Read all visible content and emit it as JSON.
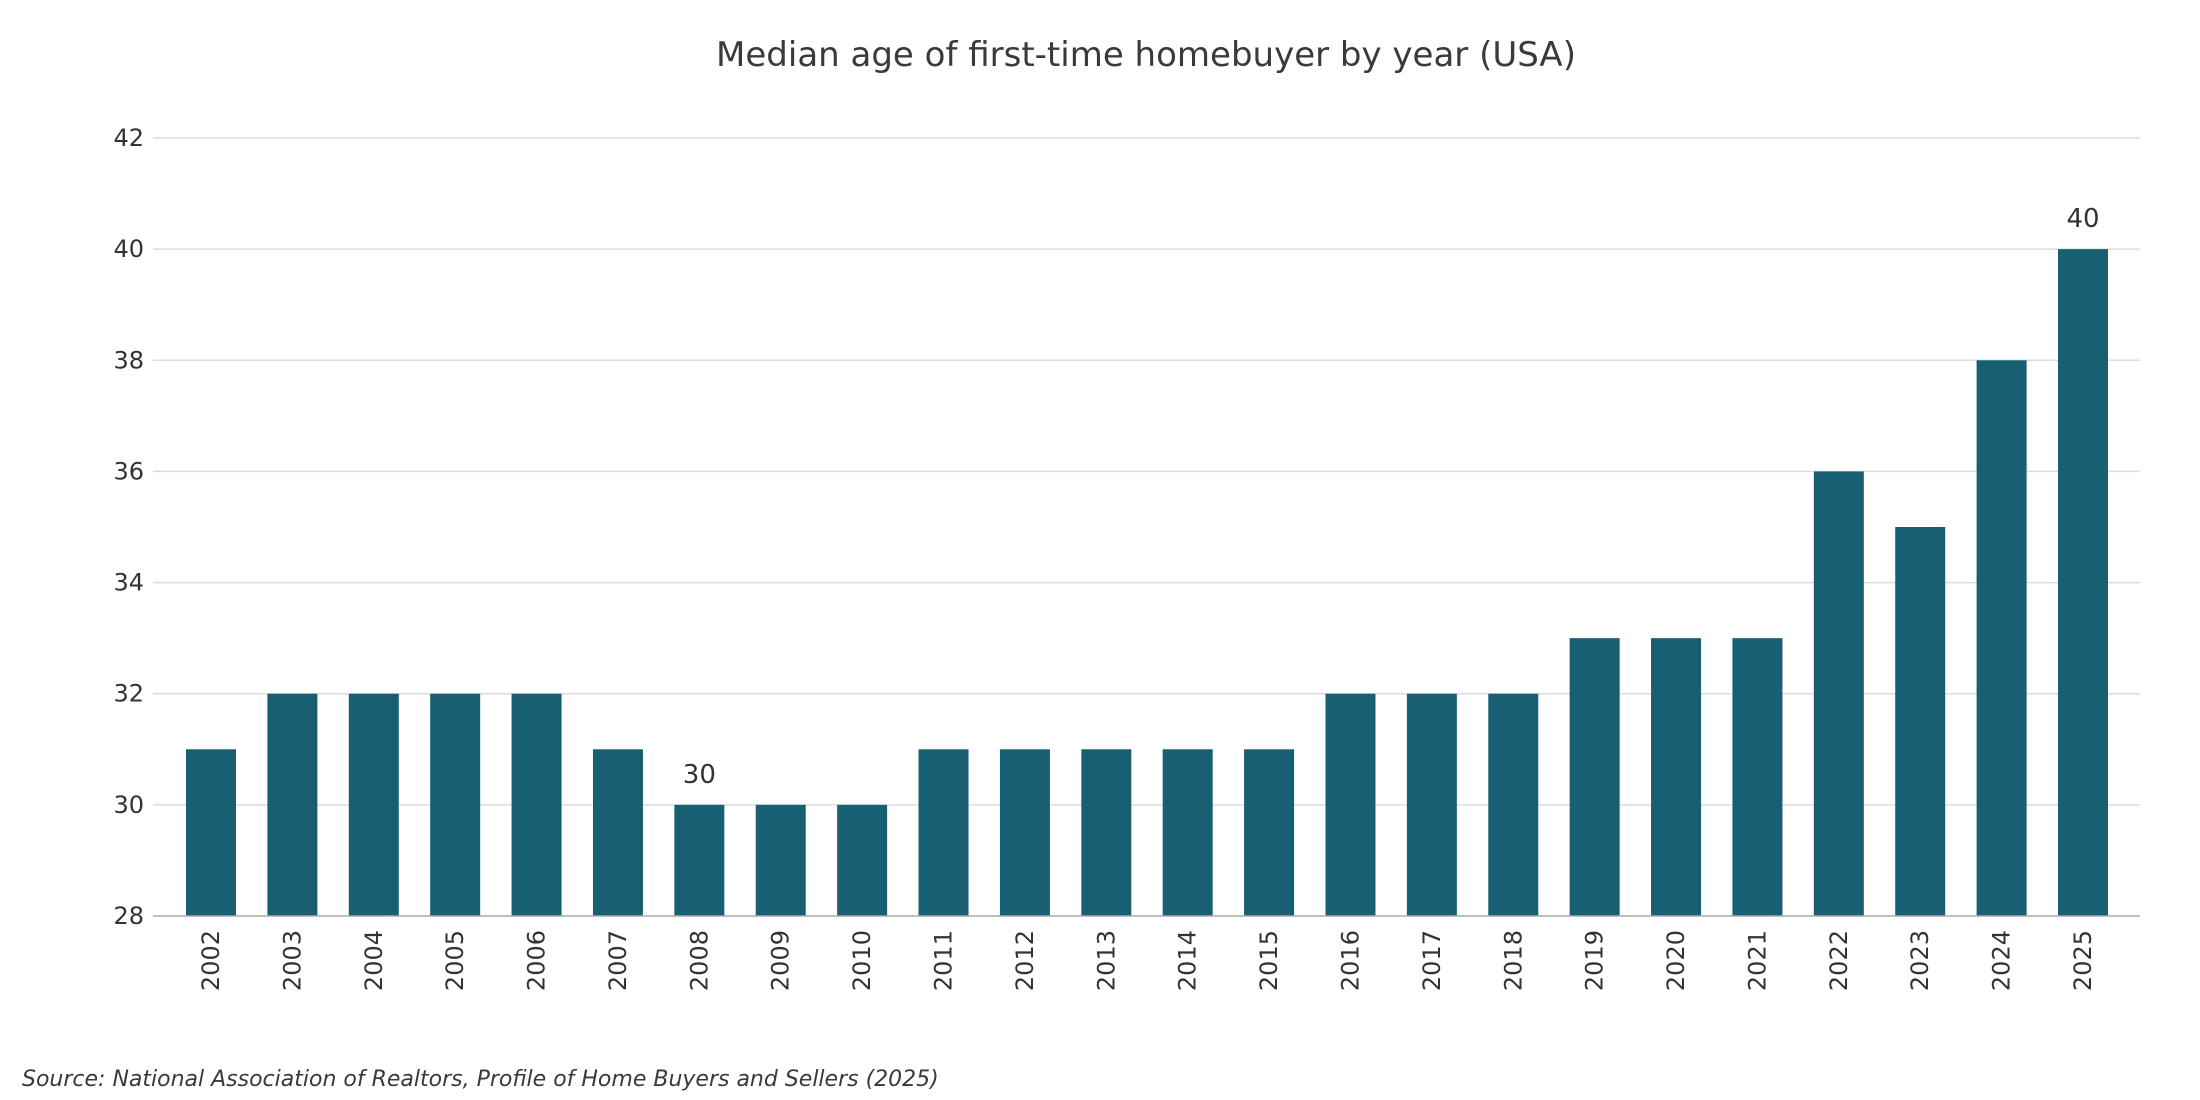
{
  "chart_data": {
    "type": "bar",
    "title": "Median age of first-time homebuyer by year (USA)",
    "xlabel": "",
    "ylabel": "",
    "categories": [
      "2002",
      "2003",
      "2004",
      "2005",
      "2006",
      "2007",
      "2008",
      "2009",
      "2010",
      "2011",
      "2012",
      "2013",
      "2014",
      "2015",
      "2016",
      "2017",
      "2018",
      "2019",
      "2020",
      "2021",
      "2022",
      "2023",
      "2024",
      "2025"
    ],
    "values": [
      31,
      32,
      32,
      32,
      32,
      31,
      30,
      30,
      30,
      31,
      31,
      31,
      31,
      31,
      32,
      32,
      32,
      33,
      33,
      33,
      36,
      35,
      38,
      40
    ],
    "ylim": [
      28,
      42
    ],
    "yticks": [
      28,
      30,
      32,
      34,
      36,
      38,
      40,
      42
    ],
    "grid": "horizontal",
    "bar_color": "#195f74",
    "annotations": [
      {
        "category": "2008",
        "text": "30"
      },
      {
        "category": "2025",
        "text": "40"
      }
    ],
    "source": "Source: National Association of Realtors, Profile of Home Buyers and Sellers (2025)"
  }
}
